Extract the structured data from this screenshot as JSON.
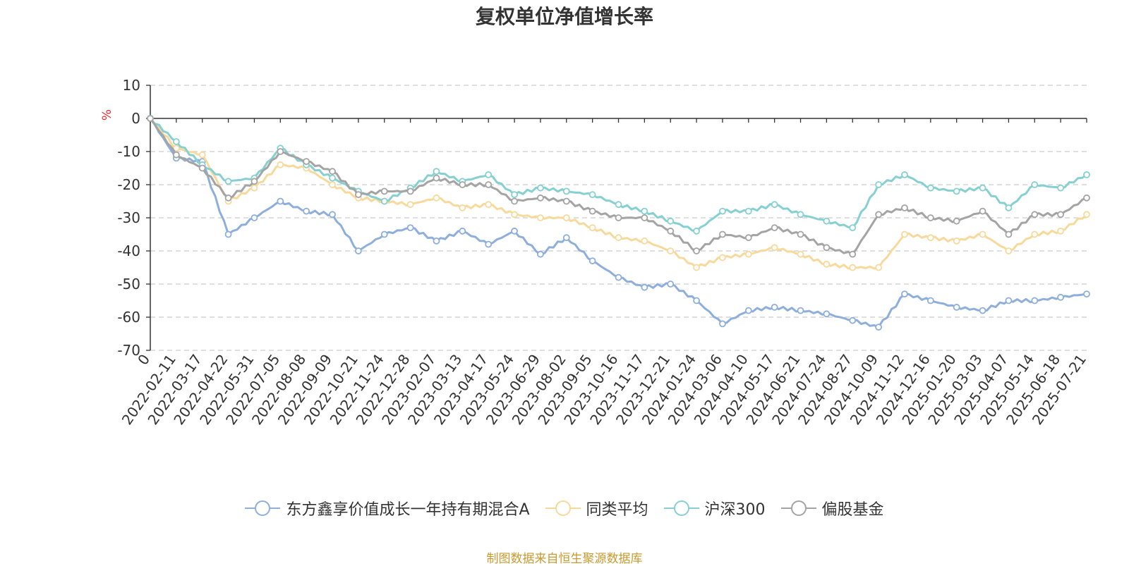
{
  "chart_data": {
    "type": "line",
    "title": "复权单位净值增长率",
    "ylabel": "%",
    "ylim": [
      -70,
      10
    ],
    "yticks": [
      10,
      0,
      -10,
      -20,
      -30,
      -40,
      -50,
      -60,
      -70
    ],
    "grid": true,
    "legend_position": "bottom",
    "x_tick_labels": [
      "0",
      "2022-02-11",
      "2022-03-17",
      "2022-04-22",
      "2022-05-31",
      "2022-07-05",
      "2022-08-08",
      "2022-09-09",
      "2022-10-21",
      "2022-11-24",
      "2022-12-28",
      "2023-02-07",
      "2023-03-13",
      "2023-04-17",
      "2023-05-24",
      "2023-06-29",
      "2023-08-02",
      "2023-09-05",
      "2023-10-16",
      "2023-11-17",
      "2023-12-21",
      "2024-01-24",
      "2024-03-06",
      "2024-04-10",
      "2024-05-17",
      "2024-06-21",
      "2024-07-24",
      "2024-08-27",
      "2024-10-09",
      "2024-11-12",
      "2024-12-16",
      "2025-01-20",
      "2025-03-03",
      "2025-04-07",
      "2025-05-14",
      "2025-06-18",
      "2025-07-21"
    ],
    "series": [
      {
        "name": "东方鑫享价值成长一年持有期混合A",
        "color": "#8eaedb",
        "values": [
          0,
          -12,
          -13,
          -35,
          -30,
          -25,
          -28,
          -29,
          -40,
          -35,
          -33,
          -37,
          -34,
          -38,
          -34,
          -41,
          -36,
          -43,
          -48,
          -51,
          -50,
          -55,
          -62,
          -58,
          -57,
          -58,
          -59,
          -61,
          -63,
          -53,
          -55,
          -57,
          -58,
          -55,
          -55,
          -54,
          -53
        ]
      },
      {
        "name": "同类平均",
        "color": "#f7d99b",
        "values": [
          0,
          -9,
          -11,
          -25,
          -21,
          -14,
          -15,
          -20,
          -24,
          -25,
          -26,
          -24,
          -27,
          -26,
          -29,
          -30,
          -30,
          -33,
          -36,
          -37,
          -40,
          -45,
          -42,
          -41,
          -39,
          -41,
          -44,
          -45,
          -45,
          -35,
          -36,
          -37,
          -35,
          -40,
          -35,
          -34,
          -29
        ]
      },
      {
        "name": "沪深300",
        "color": "#86d0d2",
        "values": [
          0,
          -7,
          -14,
          -19,
          -18,
          -9,
          -14,
          -18,
          -22,
          -25,
          -21,
          -16,
          -19,
          -17,
          -23,
          -21,
          -22,
          -23,
          -26,
          -28,
          -31,
          -34,
          -28,
          -28,
          -26,
          -29,
          -31,
          -33,
          -20,
          -17,
          -21,
          -22,
          -21,
          -27,
          -20,
          -21,
          -17
        ]
      },
      {
        "name": "偏股基金",
        "color": "#a4a4a4",
        "values": [
          0,
          -11,
          -15,
          -24,
          -19,
          -10,
          -13,
          -16,
          -23,
          -22,
          -22,
          -18,
          -20,
          -20,
          -25,
          -24,
          -25,
          -28,
          -30,
          -30,
          -34,
          -40,
          -35,
          -36,
          -33,
          -35,
          -39,
          -41,
          -29,
          -27,
          -30,
          -31,
          -28,
          -35,
          -29,
          -29,
          -24
        ]
      }
    ]
  },
  "footer": {
    "source_note": "制图数据来自恒生聚源数据库"
  }
}
